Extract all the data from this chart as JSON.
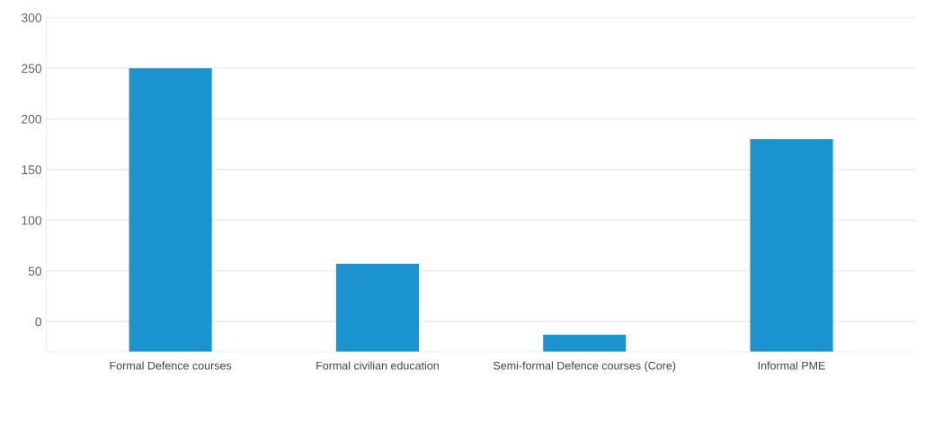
{
  "chart_data": {
    "type": "bar",
    "categories": [
      "Formal Defence courses",
      "Formal civilian education",
      "Semi-formal Defence courses (Core)",
      "Informal PME"
    ],
    "values": [
      280,
      87,
      17,
      210
    ],
    "base": [
      -30,
      -30,
      -30,
      -30
    ],
    "color": "#1b93cf",
    "ylim": [
      -30,
      300
    ],
    "yticks": [
      0,
      50,
      100,
      150,
      200,
      250,
      300
    ],
    "grid": "y"
  }
}
